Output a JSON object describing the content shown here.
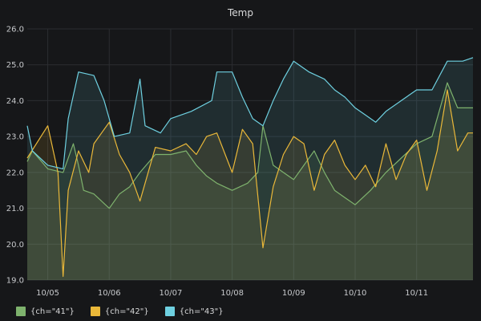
{
  "panel": {
    "title": "Temp"
  },
  "chart_data": {
    "type": "line",
    "title": "Temp",
    "ylim": [
      19.0,
      26.0
    ],
    "yticks": [
      19.0,
      20.0,
      21.0,
      22.0,
      23.0,
      24.0,
      25.0,
      26.0
    ],
    "xlim": [
      "2018-10-04 16:00",
      "2018-10-11 22:00"
    ],
    "xtick_labels": [
      "10/05",
      "10/06",
      "10/07",
      "10/08",
      "10/09",
      "10/10",
      "10/11"
    ],
    "xticks": [
      "2018-10-05 00:00",
      "2018-10-06 00:00",
      "2018-10-07 00:00",
      "2018-10-08 00:00",
      "2018-10-09 00:00",
      "2018-10-10 00:00",
      "2018-10-11 00:00"
    ],
    "grid": true,
    "legend_position": "bottom-left",
    "series": [
      {
        "name": "{ch=\"41\"}",
        "color": "#7eb26d",
        "points": [
          [
            "2018-10-04 16:00",
            22.3
          ],
          [
            "2018-10-04 18:00",
            22.6
          ],
          [
            "2018-10-05 00:00",
            22.1
          ],
          [
            "2018-10-05 06:00",
            22.0
          ],
          [
            "2018-10-05 10:00",
            22.8
          ],
          [
            "2018-10-05 12:00",
            22.2
          ],
          [
            "2018-10-05 14:00",
            21.5
          ],
          [
            "2018-10-05 18:00",
            21.4
          ],
          [
            "2018-10-06 00:00",
            21.0
          ],
          [
            "2018-10-06 04:00",
            21.4
          ],
          [
            "2018-10-06 08:00",
            21.6
          ],
          [
            "2018-10-06 12:00",
            22.0
          ],
          [
            "2018-10-06 18:00",
            22.5
          ],
          [
            "2018-10-07 00:00",
            22.5
          ],
          [
            "2018-10-07 06:00",
            22.6
          ],
          [
            "2018-10-07 10:00",
            22.2
          ],
          [
            "2018-10-07 14:00",
            21.9
          ],
          [
            "2018-10-07 18:00",
            21.7
          ],
          [
            "2018-10-08 00:00",
            21.5
          ],
          [
            "2018-10-08 06:00",
            21.7
          ],
          [
            "2018-10-08 10:00",
            22.0
          ],
          [
            "2018-10-08 12:00",
            23.3
          ],
          [
            "2018-10-08 16:00",
            22.2
          ],
          [
            "2018-10-08 20:00",
            22.0
          ],
          [
            "2018-10-09 00:00",
            21.8
          ],
          [
            "2018-10-09 04:00",
            22.2
          ],
          [
            "2018-10-09 08:00",
            22.6
          ],
          [
            "2018-10-09 12:00",
            22.0
          ],
          [
            "2018-10-09 16:00",
            21.5
          ],
          [
            "2018-10-09 20:00",
            21.3
          ],
          [
            "2018-10-10 00:00",
            21.1
          ],
          [
            "2018-10-10 06:00",
            21.5
          ],
          [
            "2018-10-10 12:00",
            22.0
          ],
          [
            "2018-10-10 18:00",
            22.4
          ],
          [
            "2018-10-11 00:00",
            22.8
          ],
          [
            "2018-10-11 06:00",
            23.0
          ],
          [
            "2018-10-11 12:00",
            24.5
          ],
          [
            "2018-10-11 16:00",
            23.8
          ],
          [
            "2018-10-11 22:00",
            23.8
          ]
        ]
      },
      {
        "name": "{ch=\"42\"}",
        "color": "#eab839",
        "points": [
          [
            "2018-10-04 16:00",
            22.4
          ],
          [
            "2018-10-05 00:00",
            23.3
          ],
          [
            "2018-10-05 04:00",
            22.0
          ],
          [
            "2018-10-05 06:00",
            19.1
          ],
          [
            "2018-10-05 08:00",
            21.5
          ],
          [
            "2018-10-05 12:00",
            22.6
          ],
          [
            "2018-10-05 16:00",
            22.0
          ],
          [
            "2018-10-05 18:00",
            22.8
          ],
          [
            "2018-10-06 00:00",
            23.4
          ],
          [
            "2018-10-06 04:00",
            22.5
          ],
          [
            "2018-10-06 08:00",
            22.0
          ],
          [
            "2018-10-06 12:00",
            21.2
          ],
          [
            "2018-10-06 18:00",
            22.7
          ],
          [
            "2018-10-07 00:00",
            22.6
          ],
          [
            "2018-10-07 06:00",
            22.8
          ],
          [
            "2018-10-07 10:00",
            22.5
          ],
          [
            "2018-10-07 14:00",
            23.0
          ],
          [
            "2018-10-07 18:00",
            23.1
          ],
          [
            "2018-10-08 00:00",
            22.0
          ],
          [
            "2018-10-08 04:00",
            23.2
          ],
          [
            "2018-10-08 08:00",
            22.8
          ],
          [
            "2018-10-08 12:00",
            19.9
          ],
          [
            "2018-10-08 16:00",
            21.6
          ],
          [
            "2018-10-08 20:00",
            22.5
          ],
          [
            "2018-10-09 00:00",
            23.0
          ],
          [
            "2018-10-09 04:00",
            22.8
          ],
          [
            "2018-10-09 08:00",
            21.5
          ],
          [
            "2018-10-09 12:00",
            22.5
          ],
          [
            "2018-10-09 16:00",
            22.9
          ],
          [
            "2018-10-09 20:00",
            22.2
          ],
          [
            "2018-10-10 00:00",
            21.8
          ],
          [
            "2018-10-10 04:00",
            22.2
          ],
          [
            "2018-10-10 08:00",
            21.6
          ],
          [
            "2018-10-10 12:00",
            22.8
          ],
          [
            "2018-10-10 16:00",
            21.8
          ],
          [
            "2018-10-10 20:00",
            22.5
          ],
          [
            "2018-10-11 00:00",
            22.9
          ],
          [
            "2018-10-11 04:00",
            21.5
          ],
          [
            "2018-10-11 08:00",
            22.6
          ],
          [
            "2018-10-11 12:00",
            24.3
          ],
          [
            "2018-10-11 16:00",
            22.6
          ],
          [
            "2018-10-11 20:00",
            23.1
          ],
          [
            "2018-10-11 22:00",
            23.1
          ]
        ]
      },
      {
        "name": "{ch=\"43\"}",
        "color": "#6ed0e0",
        "points": [
          [
            "2018-10-04 16:00",
            23.3
          ],
          [
            "2018-10-04 18:00",
            22.6
          ],
          [
            "2018-10-05 00:00",
            22.2
          ],
          [
            "2018-10-05 06:00",
            22.1
          ],
          [
            "2018-10-05 08:00",
            23.5
          ],
          [
            "2018-10-05 12:00",
            24.8
          ],
          [
            "2018-10-05 18:00",
            24.7
          ],
          [
            "2018-10-05 22:00",
            24.0
          ],
          [
            "2018-10-06 02:00",
            23.0
          ],
          [
            "2018-10-06 08:00",
            23.1
          ],
          [
            "2018-10-06 12:00",
            24.6
          ],
          [
            "2018-10-06 14:00",
            23.3
          ],
          [
            "2018-10-06 20:00",
            23.1
          ],
          [
            "2018-10-07 00:00",
            23.5
          ],
          [
            "2018-10-07 08:00",
            23.7
          ],
          [
            "2018-10-07 16:00",
            24.0
          ],
          [
            "2018-10-07 18:00",
            24.8
          ],
          [
            "2018-10-08 00:00",
            24.8
          ],
          [
            "2018-10-08 04:00",
            24.1
          ],
          [
            "2018-10-08 08:00",
            23.5
          ],
          [
            "2018-10-08 12:00",
            23.3
          ],
          [
            "2018-10-08 16:00",
            24.0
          ],
          [
            "2018-10-08 20:00",
            24.6
          ],
          [
            "2018-10-09 00:00",
            25.1
          ],
          [
            "2018-10-09 06:00",
            24.8
          ],
          [
            "2018-10-09 12:00",
            24.6
          ],
          [
            "2018-10-09 16:00",
            24.3
          ],
          [
            "2018-10-09 20:00",
            24.1
          ],
          [
            "2018-10-10 00:00",
            23.8
          ],
          [
            "2018-10-10 04:00",
            23.6
          ],
          [
            "2018-10-10 08:00",
            23.4
          ],
          [
            "2018-10-10 12:00",
            23.7
          ],
          [
            "2018-10-10 18:00",
            24.0
          ],
          [
            "2018-10-11 00:00",
            24.3
          ],
          [
            "2018-10-11 06:00",
            24.3
          ],
          [
            "2018-10-11 12:00",
            25.1
          ],
          [
            "2018-10-11 18:00",
            25.1
          ],
          [
            "2018-10-11 22:00",
            25.2
          ]
        ]
      }
    ]
  }
}
